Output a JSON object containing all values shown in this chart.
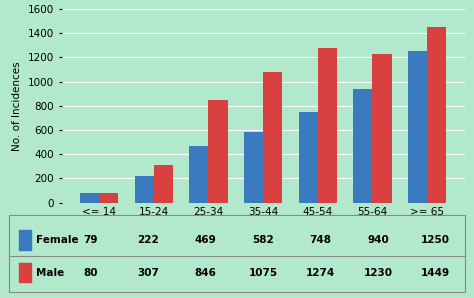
{
  "categories": [
    "<= 14",
    "15-24",
    "25-34",
    "35-44",
    "45-54",
    "55-64",
    ">= 65"
  ],
  "female_values": [
    79,
    222,
    469,
    582,
    748,
    940,
    1250
  ],
  "male_values": [
    80,
    307,
    846,
    1075,
    1274,
    1230,
    1449
  ],
  "female_color": "#3a7abf",
  "male_color": "#d94040",
  "background_color": "#b2e8cc",
  "ylabel": "No. of Incidences",
  "ylim": [
    0,
    1600
  ],
  "yticks": [
    0,
    200,
    400,
    600,
    800,
    1000,
    1200,
    1400,
    1600
  ],
  "legend_female": "Female",
  "legend_male": "Male",
  "grid_color": "#ffffff",
  "bar_width": 0.35,
  "table_border_color": "#888888",
  "text_color": "#000000"
}
